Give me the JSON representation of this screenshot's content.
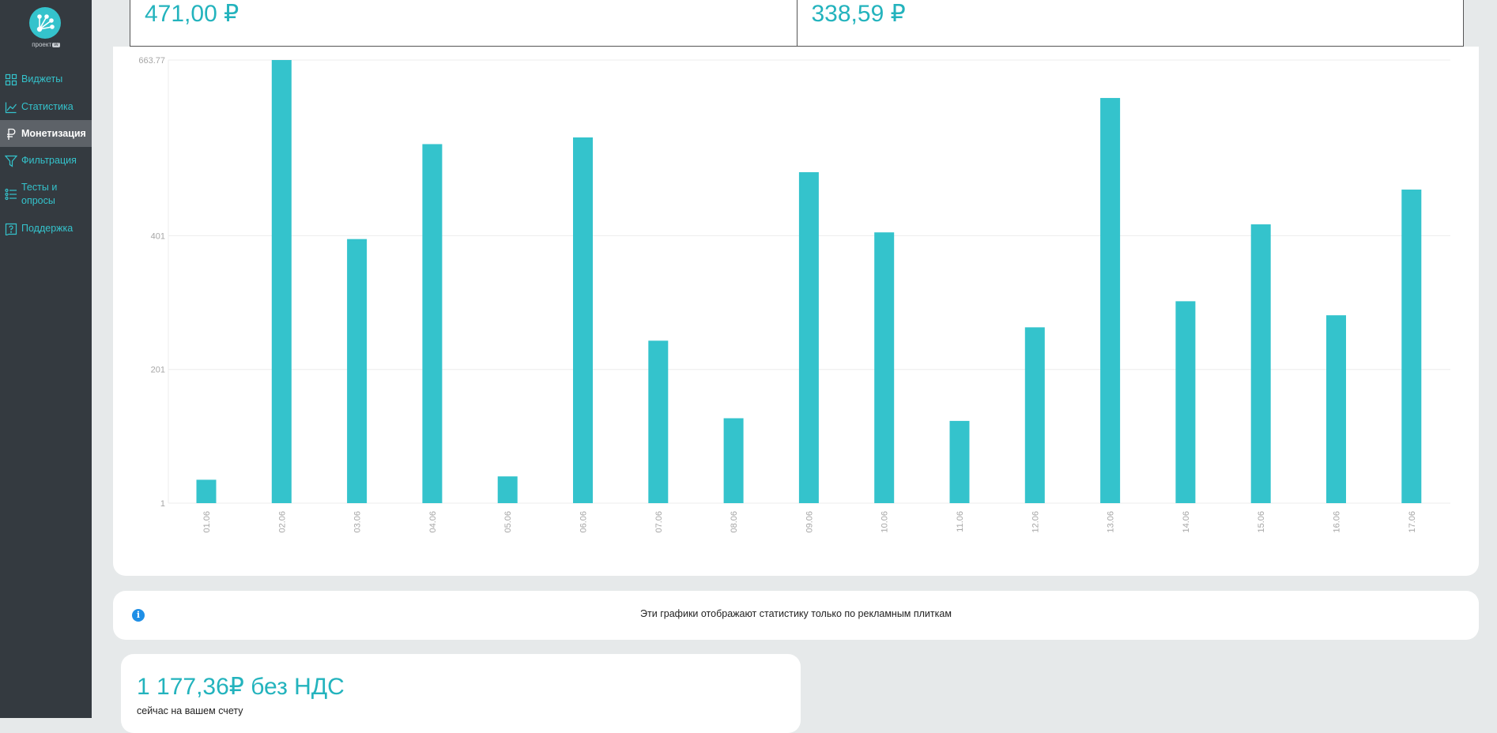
{
  "sidebar": {
    "logo_text": "проект",
    "logo_badge": "W",
    "items": [
      {
        "label": "Виджеты",
        "icon": "widgets-grid-icon",
        "active": false
      },
      {
        "label": "Статистика",
        "icon": "line-chart-icon",
        "active": false
      },
      {
        "label": "Монетизация",
        "icon": "ruble-icon",
        "active": true
      },
      {
        "label": "Фильтрация",
        "icon": "filter-funnel-icon",
        "active": false
      },
      {
        "label": "Тесты и опросы",
        "icon": "checklist-icon",
        "active": false
      },
      {
        "label": "Поддержка",
        "icon": "help-question-icon",
        "active": false
      }
    ]
  },
  "summary": {
    "left_value": "471,00 ₽",
    "right_value": "338,59 ₽"
  },
  "chart_data": {
    "type": "bar",
    "categories": [
      "01.06",
      "02.06",
      "03.06",
      "04.06",
      "05.06",
      "06.06",
      "07.06",
      "08.06",
      "09.06",
      "10.06",
      "11.06",
      "12.06",
      "13.06",
      "14.06",
      "15.06",
      "16.06",
      "17.06"
    ],
    "values": [
      36,
      663.77,
      396,
      538,
      41,
      548,
      244,
      128,
      496,
      406,
      124,
      264,
      607,
      303,
      418,
      282,
      470
    ],
    "y_ticks": [
      "1",
      "201",
      "401",
      "663.77"
    ],
    "ylim": [
      1,
      663.77
    ],
    "color": "#34c3cc",
    "grid": true
  },
  "info": {
    "text": "Эти графики отображают статистику только по рекламным плиткам"
  },
  "balance": {
    "amount": "1 177,36₽ без НДС",
    "caption": "сейчас на вашем счету"
  }
}
